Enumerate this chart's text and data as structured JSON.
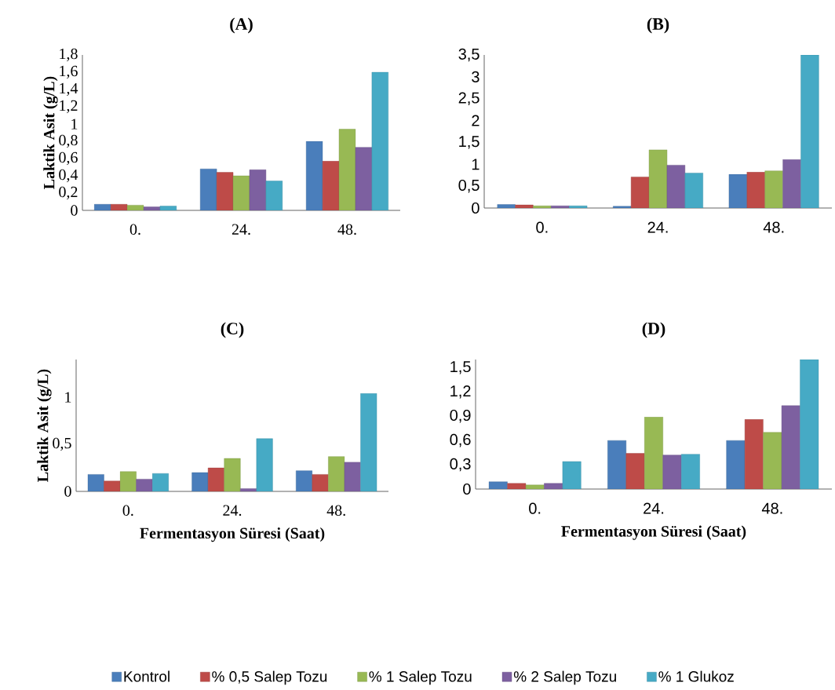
{
  "chart_data": [
    {
      "type": "bar",
      "title": "(A)",
      "ylabel": "Laktik Asit (g/L)",
      "categories": [
        "0.",
        "24.",
        "48."
      ],
      "ylim": [
        0,
        1.8
      ],
      "yticks": [
        0,
        {
          "value": 0.2,
          "label": "0,2"
        },
        {
          "value": 0.4,
          "label": "0,4"
        },
        {
          "value": 0.6,
          "label": "0,6"
        },
        {
          "value": 0.8,
          "label": "0,8"
        },
        1,
        {
          "value": 1.2,
          "label": "1,2"
        },
        {
          "value": 1.4,
          "label": "1,4"
        },
        {
          "value": 1.6,
          "label": "1,6"
        },
        {
          "value": 1.8,
          "label": "1,8"
        }
      ],
      "series": [
        {
          "color": "#4a7ebb",
          "values": [
            0.07,
            0.48,
            0.8
          ]
        },
        {
          "color": "#be4b48",
          "values": [
            0.07,
            0.44,
            0.57
          ]
        },
        {
          "color": "#98b954",
          "values": [
            0.06,
            0.4,
            0.94
          ]
        },
        {
          "color": "#7d60a0",
          "values": [
            0.04,
            0.47,
            0.73
          ]
        },
        {
          "color": "#46aac5",
          "values": [
            0.05,
            0.34,
            1.6
          ]
        }
      ]
    },
    {
      "type": "bar",
      "title": "(B)",
      "categories": [
        "0.",
        "24.",
        "48."
      ],
      "ylim": [
        0,
        3.5
      ],
      "yticks": [
        0,
        {
          "value": 0.5,
          "label": "0,5"
        },
        1,
        {
          "value": 1.5,
          "label": "1,5"
        },
        2,
        {
          "value": 2.5,
          "label": "2,5"
        },
        3,
        {
          "value": 3.5,
          "label": "3,5"
        }
      ],
      "series": [
        {
          "color": "#4a7ebb",
          "values": [
            0.08,
            0.04,
            0.77
          ]
        },
        {
          "color": "#be4b48",
          "values": [
            0.07,
            0.71,
            0.82
          ]
        },
        {
          "color": "#98b954",
          "values": [
            0.05,
            1.33,
            0.85
          ]
        },
        {
          "color": "#7d60a0",
          "values": [
            0.05,
            0.98,
            1.11
          ]
        },
        {
          "color": "#46aac5",
          "values": [
            0.05,
            0.8,
            3.5
          ]
        }
      ]
    },
    {
      "type": "bar",
      "title": "(C)",
      "xlabel": "Fermentasyon Süresi (Saat)",
      "ylabel": "Laktik Asit (g/L)",
      "categories": [
        "0.",
        "24.",
        "48."
      ],
      "ylim": [
        0,
        1.4
      ],
      "yticks": [
        0,
        {
          "value": 0.5,
          "label": "0,5"
        },
        1
      ],
      "series": [
        {
          "color": "#4a7ebb",
          "values": [
            0.18,
            0.2,
            0.22
          ]
        },
        {
          "color": "#be4b48",
          "values": [
            0.11,
            0.25,
            0.18
          ]
        },
        {
          "color": "#98b954",
          "values": [
            0.21,
            0.35,
            0.37
          ]
        },
        {
          "color": "#7d60a0",
          "values": [
            0.13,
            0.03,
            0.31
          ]
        },
        {
          "color": "#46aac5",
          "values": [
            0.19,
            0.56,
            1.04
          ]
        }
      ]
    },
    {
      "type": "bar",
      "title": "(D)",
      "xlabel": "Fermentasyon Süresi (Saat)",
      "categories": [
        "0.",
        "24.",
        "48."
      ],
      "ylim": [
        0,
        1.6
      ],
      "legend": "bottom",
      "yticks": [
        0,
        {
          "value": 0.3,
          "label": "0,3"
        },
        {
          "value": 0.6,
          "label": "0,6"
        },
        {
          "value": 0.9,
          "label": "0,9"
        },
        {
          "value": 1.2,
          "label": "1,2"
        },
        {
          "value": 1.5,
          "label": "1,5"
        }
      ],
      "series": [
        {
          "name": "Kontrol",
          "color": "#4a7ebb",
          "values": [
            0.09,
            0.6,
            0.6
          ]
        },
        {
          "name": "% 0,5 Salep Tozu",
          "color": "#be4b48",
          "values": [
            0.07,
            0.44,
            0.86
          ]
        },
        {
          "name": "% 1 Salep Tozu",
          "color": "#98b954",
          "values": [
            0.05,
            0.89,
            0.7
          ]
        },
        {
          "name": "% 2 Salep Tozu",
          "color": "#7d60a0",
          "values": [
            0.07,
            0.42,
            1.03
          ]
        },
        {
          "name": "% 1 Glukoz",
          "color": "#46aac5",
          "values": [
            0.34,
            0.43,
            1.6
          ]
        }
      ]
    }
  ]
}
